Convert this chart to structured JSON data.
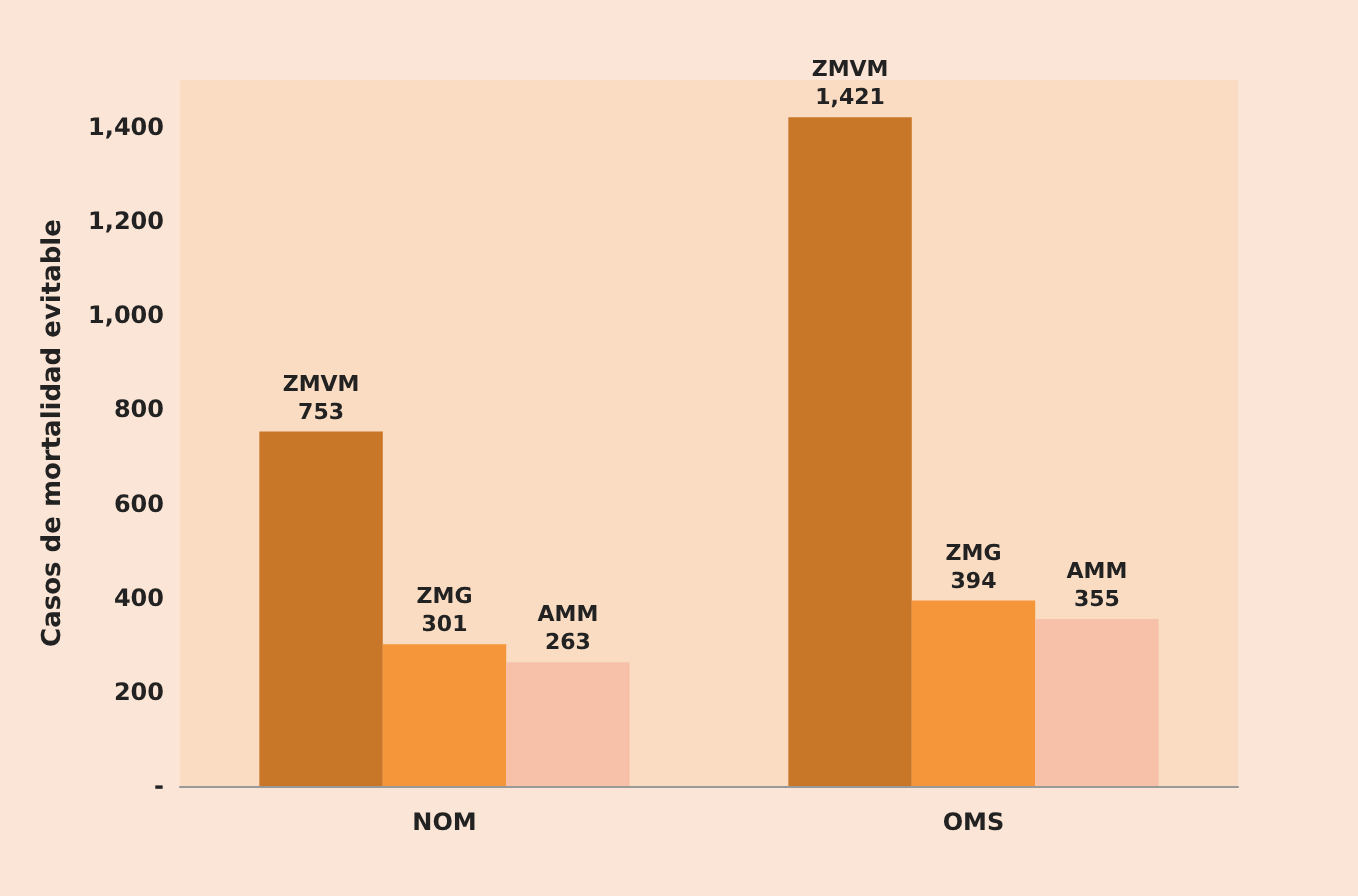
{
  "chart_data": {
    "type": "bar",
    "ylabel": "Casos de mortalidad evitable",
    "categories": [
      "NOM",
      "OMS"
    ],
    "series": [
      {
        "name": "ZMVM",
        "color": "#c87628",
        "values": [
          753,
          1421
        ],
        "value_labels": [
          "753",
          "1,421"
        ]
      },
      {
        "name": "ZMG",
        "color": "#f5963a",
        "values": [
          301,
          394
        ],
        "value_labels": [
          "301",
          "394"
        ]
      },
      {
        "name": "AMM",
        "color": "#f7c0a8",
        "values": [
          263,
          355
        ],
        "value_labels": [
          "263",
          "355"
        ]
      }
    ],
    "ylim": [
      0,
      1500
    ],
    "yticks": [
      {
        "value": 0,
        "label": "-"
      },
      200,
      400,
      600,
      800,
      {
        "value": 1000,
        "label": "1,000"
      },
      {
        "value": 1200,
        "label": "1,200"
      },
      {
        "value": 1400,
        "label": "1,400"
      }
    ],
    "grid": false,
    "legend": false
  }
}
